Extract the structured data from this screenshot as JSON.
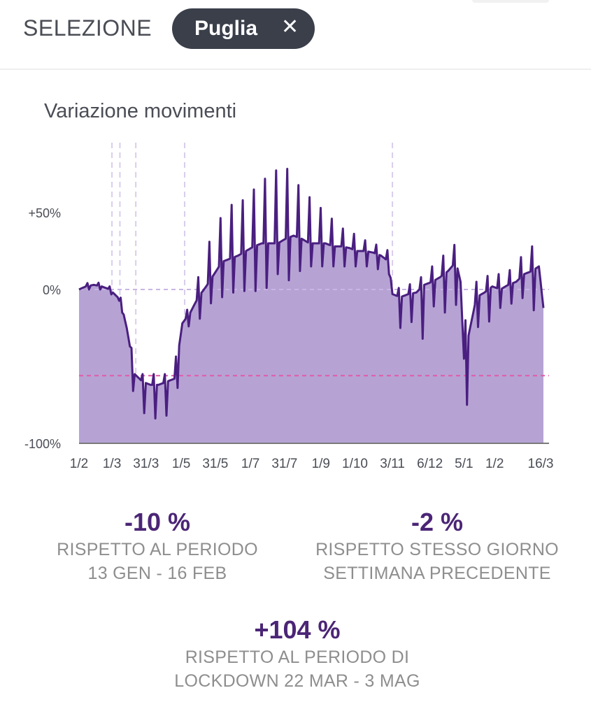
{
  "header": {
    "selection_label": "SELEZIONE",
    "region_chip": "Puglia",
    "close_glyph": "✕"
  },
  "chart_title": "Variazione movimenti",
  "chart_data": {
    "type": "area",
    "title": "Variazione movimenti",
    "y_ticks": [
      "+50%",
      "0%",
      "-100%"
    ],
    "x_ticks": [
      "1/2",
      "1/3",
      "31/3",
      "1/5",
      "31/5",
      "1/7",
      "31/7",
      "1/9",
      "1/10",
      "3/11",
      "6/12",
      "5/1",
      "1/2",
      "16/3"
    ],
    "ylim": [
      -100,
      100
    ],
    "reference_lines": [
      {
        "name": "baseline",
        "value": 0,
        "color": "#c9b6e4"
      },
      {
        "name": "lockdown-level",
        "value": -56,
        "color": "#e25aa8"
      }
    ],
    "event_markers": [
      "1/3",
      "8/3",
      "22/3",
      "4/5",
      "3/11"
    ],
    "x": [
      "2020-02-01",
      "2020-02-07",
      "2020-02-14",
      "2020-02-21",
      "2020-02-28",
      "2020-03-06",
      "2020-03-10",
      "2020-03-14",
      "2020-03-21",
      "2020-03-28",
      "2020-04-04",
      "2020-04-11",
      "2020-04-18",
      "2020-04-25",
      "2020-05-02",
      "2020-05-09",
      "2020-05-16",
      "2020-05-23",
      "2020-05-30",
      "2020-06-06",
      "2020-06-13",
      "2020-06-20",
      "2020-06-27",
      "2020-07-04",
      "2020-07-11",
      "2020-07-18",
      "2020-07-25",
      "2020-08-01",
      "2020-08-08",
      "2020-08-15",
      "2020-08-22",
      "2020-08-29",
      "2020-09-05",
      "2020-09-12",
      "2020-09-19",
      "2020-09-26",
      "2020-10-03",
      "2020-10-10",
      "2020-10-17",
      "2020-10-24",
      "2020-10-31",
      "2020-11-03",
      "2020-11-10",
      "2020-11-17",
      "2020-11-24",
      "2020-12-01",
      "2020-12-08",
      "2020-12-15",
      "2020-12-22",
      "2020-12-29",
      "2021-01-02",
      "2021-01-05",
      "2021-01-09",
      "2021-01-16",
      "2021-01-23",
      "2021-01-30",
      "2021-02-06",
      "2021-02-13",
      "2021-02-20",
      "2021-02-27",
      "2021-03-06",
      "2021-03-12",
      "2021-03-16"
    ],
    "base": [
      0,
      2,
      3,
      2,
      0,
      -5,
      -12,
      -25,
      -55,
      -60,
      -62,
      -62,
      -60,
      -58,
      -22,
      -15,
      -5,
      2,
      10,
      18,
      20,
      22,
      25,
      28,
      30,
      30,
      30,
      33,
      35,
      33,
      30,
      30,
      30,
      28,
      28,
      27,
      25,
      25,
      24,
      22,
      18,
      -3,
      -5,
      -3,
      -2,
      3,
      5,
      8,
      12,
      18,
      5,
      -45,
      -30,
      -5,
      -2,
      2,
      0,
      3,
      5,
      10,
      12,
      15,
      -12
    ],
    "peaks": [
      3,
      4,
      5,
      4,
      2,
      0,
      -8,
      -20,
      -50,
      -55,
      -55,
      -55,
      -55,
      -50,
      -18,
      -10,
      8,
      25,
      40,
      48,
      55,
      55,
      60,
      65,
      70,
      75,
      78,
      80,
      72,
      65,
      60,
      55,
      50,
      45,
      40,
      38,
      35,
      32,
      30,
      28,
      25,
      5,
      0,
      3,
      5,
      10,
      15,
      20,
      25,
      30,
      8,
      -25,
      -10,
      5,
      8,
      10,
      10,
      12,
      15,
      25,
      28,
      32,
      10
    ],
    "troughs": [
      0,
      0,
      0,
      0,
      -2,
      -8,
      -15,
      -30,
      -75,
      -80,
      -82,
      -85,
      -82,
      -80,
      -40,
      -20,
      -20,
      -15,
      -5,
      -5,
      0,
      -5,
      0,
      0,
      -5,
      5,
      10,
      10,
      0,
      15,
      15,
      15,
      15,
      15,
      15,
      15,
      15,
      15,
      15,
      12,
      10,
      -20,
      -25,
      -22,
      -20,
      -35,
      -10,
      -15,
      -15,
      -10,
      -30,
      -75,
      -75,
      -25,
      -22,
      -20,
      -12,
      -10,
      -8,
      -5,
      -3,
      -45,
      -15
    ]
  },
  "stats": [
    {
      "value": "-10 %",
      "line1": "RISPETTO AL PERIODO",
      "line2": "13 GEN - 16 FEB"
    },
    {
      "value": "-2 %",
      "line1": "RISPETTO STESSO GIORNO",
      "line2": "SETTIMANA PRECEDENTE"
    },
    {
      "value": "+104 %",
      "line1": "RISPETTO AL PERIODO DI",
      "line2": "LOCKDOWN 22 MAR - 3 MAG"
    }
  ],
  "colors": {
    "area_fill": "#b6a3d4",
    "line": "#4a1f80",
    "accent_text": "#4b2576",
    "chip_bg": "#3a3f4a"
  }
}
